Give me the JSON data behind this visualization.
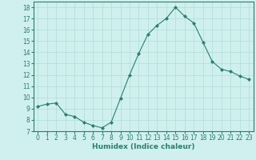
{
  "x": [
    0,
    1,
    2,
    3,
    4,
    5,
    6,
    7,
    8,
    9,
    10,
    11,
    12,
    13,
    14,
    15,
    16,
    17,
    18,
    19,
    20,
    21,
    22,
    23
  ],
  "y": [
    9.2,
    9.4,
    9.5,
    8.5,
    8.3,
    7.8,
    7.5,
    7.3,
    7.8,
    9.9,
    12.0,
    13.9,
    15.6,
    16.4,
    17.0,
    18.0,
    17.2,
    16.6,
    14.9,
    13.2,
    12.5,
    12.3,
    11.9,
    11.6
  ],
  "line_color": "#2d7d6e",
  "marker": "D",
  "marker_size": 2,
  "bg_color": "#cff0ee",
  "grid_color": "#b0ddd9",
  "xlabel": "Humidex (Indice chaleur)",
  "xlim": [
    -0.5,
    23.5
  ],
  "ylim": [
    7,
    18.5
  ],
  "yticks": [
    7,
    8,
    9,
    10,
    11,
    12,
    13,
    14,
    15,
    16,
    17,
    18
  ],
  "xticks": [
    0,
    1,
    2,
    3,
    4,
    5,
    6,
    7,
    8,
    9,
    10,
    11,
    12,
    13,
    14,
    15,
    16,
    17,
    18,
    19,
    20,
    21,
    22,
    23
  ],
  "label_fontsize": 6.5,
  "tick_fontsize": 5.5
}
